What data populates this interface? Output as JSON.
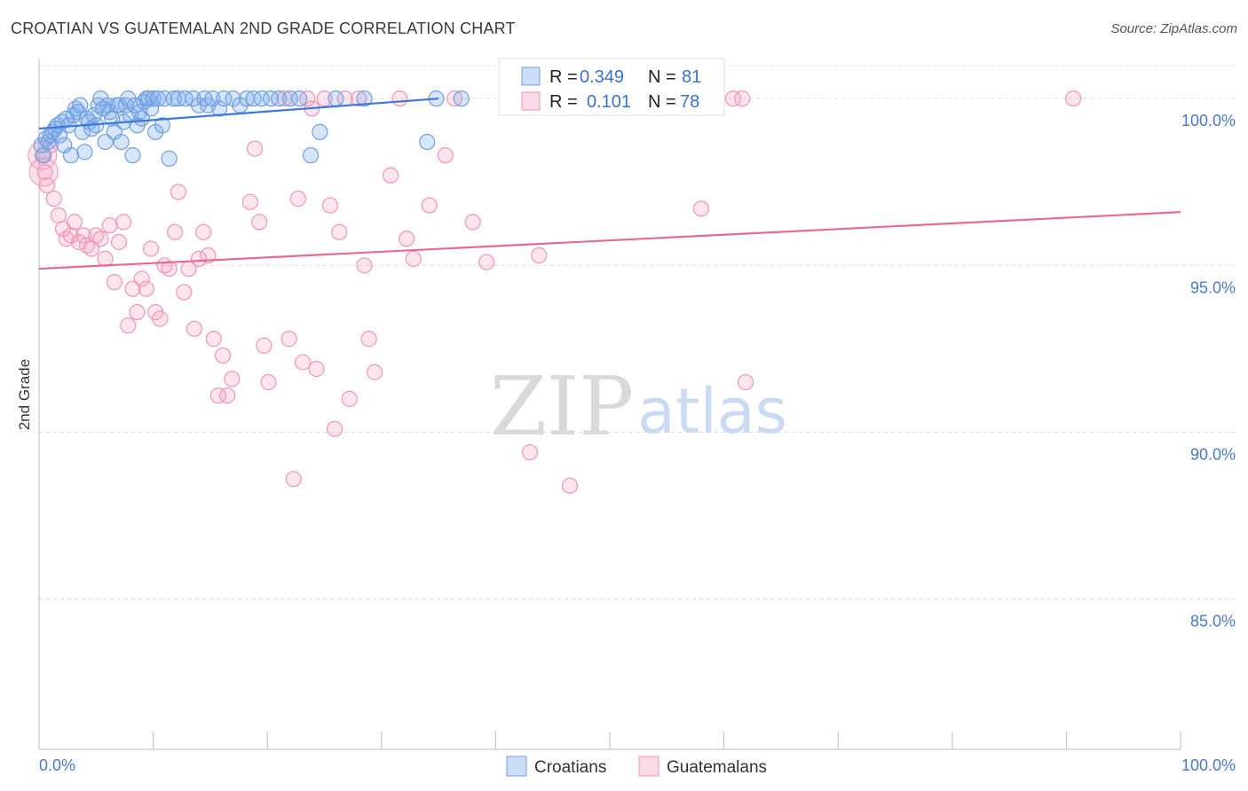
{
  "title": "CROATIAN VS GUATEMALAN 2ND GRADE CORRELATION CHART",
  "source": "Source: ZipAtlas.com",
  "watermark": {
    "zip": "ZIP",
    "atlas": "atlas"
  },
  "colors": {
    "blue": "#3b78d8",
    "blue_fill": "rgba(124,170,236,0.30)",
    "blue_stroke": "#6f9fe0",
    "pink": "#e46a93",
    "pink_fill": "rgba(244,160,190,0.30)",
    "pink_stroke": "#ef95b5",
    "tick_label": "#4a78c6",
    "grid": "#dddddd"
  },
  "legend": {
    "rows": [
      {
        "r_label": "R =",
        "r_value": "0.349",
        "n_label": "N =",
        "n_value": "81",
        "series": "Croatians"
      },
      {
        "r_label": "R =",
        "r_value": "0.101",
        "n_label": "N =",
        "n_value": "78",
        "series": "Guatemalans"
      }
    ]
  },
  "chart_data": {
    "type": "scatter",
    "title": "CROATIAN VS GUATEMALAN 2ND GRADE CORRELATION CHART",
    "xlabel": "",
    "ylabel": "2nd Grade",
    "xlim": [
      0,
      100
    ],
    "ylim": [
      80.5,
      101.2
    ],
    "x_tick_labels": [
      "0.0%",
      "100.0%"
    ],
    "y_ticks": [
      {
        "value": 100,
        "label": "100.0%"
      },
      {
        "value": 95,
        "label": "95.0%"
      },
      {
        "value": 90,
        "label": "90.0%"
      },
      {
        "value": 85,
        "label": "85.0%"
      }
    ],
    "grid": "horizontal dashed",
    "legend_position": "top-center",
    "series": [
      {
        "name": "Croatians",
        "color": "#3b78d8",
        "trend": {
          "x": [
            0,
            35
          ],
          "y": [
            99.1,
            100.0
          ]
        },
        "points": [
          [
            0.2,
            98.6
          ],
          [
            0.4,
            98.3
          ],
          [
            0.6,
            98.8
          ],
          [
            0.8,
            98.7
          ],
          [
            1.0,
            98.9
          ],
          [
            1.2,
            99.0
          ],
          [
            1.4,
            99.1
          ],
          [
            1.6,
            99.2
          ],
          [
            1.8,
            98.9
          ],
          [
            2.0,
            99.3
          ],
          [
            2.2,
            98.6
          ],
          [
            2.4,
            99.4
          ],
          [
            2.6,
            99.2
          ],
          [
            2.8,
            98.3
          ],
          [
            3.0,
            99.5
          ],
          [
            3.2,
            99.7
          ],
          [
            3.4,
            99.6
          ],
          [
            3.6,
            99.8
          ],
          [
            3.8,
            99.0
          ],
          [
            4.0,
            98.4
          ],
          [
            4.2,
            99.4
          ],
          [
            4.4,
            99.3
          ],
          [
            4.6,
            99.1
          ],
          [
            4.8,
            99.5
          ],
          [
            5.0,
            99.2
          ],
          [
            5.2,
            99.8
          ],
          [
            5.4,
            100.0
          ],
          [
            5.6,
            99.7
          ],
          [
            5.8,
            98.7
          ],
          [
            6.0,
            99.8
          ],
          [
            6.2,
            99.6
          ],
          [
            6.4,
            99.4
          ],
          [
            6.6,
            99.0
          ],
          [
            6.8,
            99.8
          ],
          [
            7.0,
            99.8
          ],
          [
            7.2,
            98.7
          ],
          [
            7.4,
            99.3
          ],
          [
            7.6,
            99.8
          ],
          [
            7.8,
            100.0
          ],
          [
            8.0,
            99.5
          ],
          [
            8.2,
            98.3
          ],
          [
            8.4,
            99.8
          ],
          [
            8.6,
            99.2
          ],
          [
            8.8,
            99.6
          ],
          [
            9.0,
            99.4
          ],
          [
            9.2,
            99.9
          ],
          [
            9.4,
            100.0
          ],
          [
            9.6,
            100.0
          ],
          [
            9.8,
            99.7
          ],
          [
            10.0,
            100.0
          ],
          [
            10.2,
            99.0
          ],
          [
            10.4,
            100.0
          ],
          [
            10.8,
            99.2
          ],
          [
            11.0,
            100.0
          ],
          [
            11.4,
            98.2
          ],
          [
            11.8,
            100.0
          ],
          [
            12.2,
            100.0
          ],
          [
            12.8,
            100.0
          ],
          [
            13.5,
            100.0
          ],
          [
            14.0,
            99.8
          ],
          [
            14.5,
            100.0
          ],
          [
            14.8,
            99.8
          ],
          [
            15.2,
            100.0
          ],
          [
            15.8,
            99.7
          ],
          [
            16.2,
            100.0
          ],
          [
            17.0,
            100.0
          ],
          [
            17.6,
            99.8
          ],
          [
            18.2,
            100.0
          ],
          [
            18.8,
            100.0
          ],
          [
            19.5,
            100.0
          ],
          [
            20.3,
            100.0
          ],
          [
            21.0,
            100.0
          ],
          [
            22.0,
            100.0
          ],
          [
            22.8,
            100.0
          ],
          [
            23.8,
            98.3
          ],
          [
            24.6,
            99.0
          ],
          [
            26.0,
            100.0
          ],
          [
            28.5,
            100.0
          ],
          [
            34.0,
            98.7
          ],
          [
            34.8,
            100.0
          ],
          [
            37.0,
            100.0
          ]
        ]
      },
      {
        "name": "Guatemalans",
        "color": "#e46a93",
        "trend": {
          "x": [
            0,
            100
          ],
          "y": [
            94.9,
            96.6
          ]
        },
        "points": [
          [
            0.3,
            98.3
          ],
          [
            0.5,
            97.8
          ],
          [
            0.7,
            97.4
          ],
          [
            1.0,
            98.6
          ],
          [
            1.3,
            97.0
          ],
          [
            1.7,
            96.5
          ],
          [
            2.1,
            96.1
          ],
          [
            2.4,
            95.8
          ],
          [
            2.8,
            95.9
          ],
          [
            3.1,
            96.3
          ],
          [
            3.5,
            95.7
          ],
          [
            3.9,
            95.9
          ],
          [
            4.2,
            95.6
          ],
          [
            4.6,
            95.5
          ],
          [
            5.0,
            95.9
          ],
          [
            5.4,
            95.8
          ],
          [
            5.8,
            95.2
          ],
          [
            6.2,
            96.2
          ],
          [
            6.6,
            94.5
          ],
          [
            7.0,
            95.7
          ],
          [
            7.4,
            96.3
          ],
          [
            7.8,
            93.2
          ],
          [
            8.2,
            94.3
          ],
          [
            8.6,
            93.6
          ],
          [
            9.0,
            94.6
          ],
          [
            9.4,
            94.3
          ],
          [
            9.8,
            95.5
          ],
          [
            10.2,
            93.6
          ],
          [
            10.6,
            93.4
          ],
          [
            11.0,
            95.0
          ],
          [
            11.4,
            94.9
          ],
          [
            11.9,
            96.0
          ],
          [
            12.2,
            97.2
          ],
          [
            12.7,
            94.2
          ],
          [
            13.1,
            94.9
          ],
          [
            13.6,
            93.1
          ],
          [
            14.0,
            95.2
          ],
          [
            14.4,
            96.0
          ],
          [
            14.8,
            95.3
          ],
          [
            15.3,
            92.8
          ],
          [
            15.7,
            91.1
          ],
          [
            16.1,
            92.3
          ],
          [
            16.5,
            91.1
          ],
          [
            16.9,
            91.6
          ],
          [
            18.5,
            96.9
          ],
          [
            18.9,
            98.5
          ],
          [
            19.3,
            96.3
          ],
          [
            19.7,
            92.6
          ],
          [
            20.1,
            91.5
          ],
          [
            21.5,
            100.0
          ],
          [
            21.9,
            92.8
          ],
          [
            22.3,
            88.6
          ],
          [
            22.7,
            97.0
          ],
          [
            23.1,
            92.1
          ],
          [
            23.5,
            100.0
          ],
          [
            23.9,
            99.7
          ],
          [
            24.3,
            91.9
          ],
          [
            25.0,
            100.0
          ],
          [
            25.5,
            96.8
          ],
          [
            25.9,
            90.1
          ],
          [
            26.3,
            96.0
          ],
          [
            26.8,
            100.0
          ],
          [
            27.2,
            91.0
          ],
          [
            28.0,
            100.0
          ],
          [
            28.5,
            95.0
          ],
          [
            28.9,
            92.8
          ],
          [
            29.4,
            91.8
          ],
          [
            30.8,
            97.7
          ],
          [
            31.6,
            100.0
          ],
          [
            32.2,
            95.8
          ],
          [
            32.8,
            95.2
          ],
          [
            34.2,
            96.8
          ],
          [
            35.6,
            98.3
          ],
          [
            36.4,
            100.0
          ],
          [
            38.0,
            96.3
          ],
          [
            39.2,
            95.1
          ],
          [
            43.0,
            89.4
          ],
          [
            43.8,
            95.3
          ]
        ],
        "extra_points": [
          [
            46.5,
            88.4
          ],
          [
            58.0,
            96.7
          ],
          [
            60.8,
            100.0
          ],
          [
            61.6,
            100.0
          ],
          [
            61.9,
            91.5
          ],
          [
            90.6,
            100.0
          ]
        ]
      }
    ]
  },
  "bottom_legend": {
    "items": [
      "Croatians",
      "Guatemalans"
    ]
  }
}
